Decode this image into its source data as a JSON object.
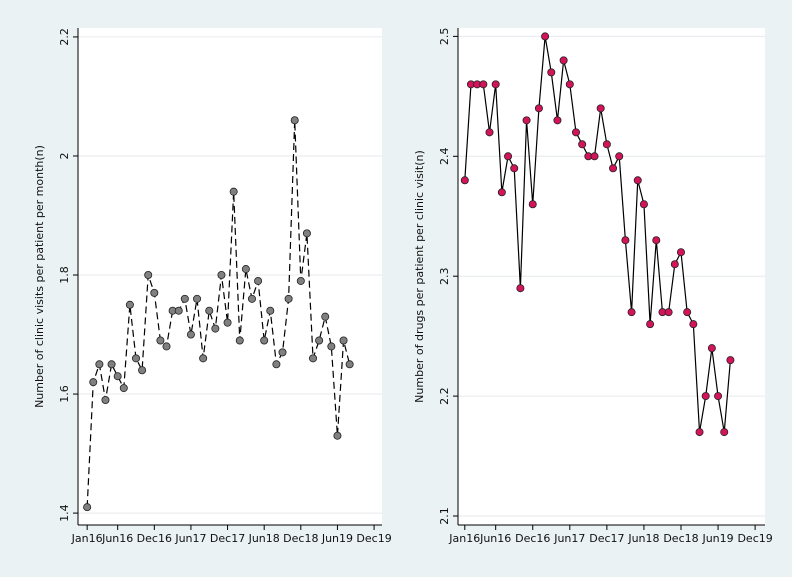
{
  "chart_data": [
    {
      "type": "line",
      "ylabel": "Number of clinic visits per patient per month(n)",
      "x": [
        0,
        1,
        2,
        3,
        4,
        5,
        6,
        7,
        8,
        9,
        10,
        11,
        12,
        13,
        14,
        15,
        16,
        17,
        18,
        19,
        20,
        21,
        22,
        23,
        24,
        25,
        26,
        27,
        28,
        29,
        30,
        31,
        32,
        33,
        34,
        35,
        36,
        37,
        38,
        39,
        40,
        41,
        42,
        43
      ],
      "values": [
        1.41,
        1.62,
        1.65,
        1.59,
        1.65,
        1.63,
        1.61,
        1.75,
        1.66,
        1.64,
        1.8,
        1.77,
        1.69,
        1.68,
        1.74,
        1.74,
        1.76,
        1.7,
        1.76,
        1.66,
        1.74,
        1.71,
        1.8,
        1.72,
        1.94,
        1.69,
        1.81,
        1.76,
        1.79,
        1.69,
        1.74,
        1.65,
        1.67,
        1.76,
        2.06,
        1.79,
        1.87,
        1.66,
        1.69,
        1.73,
        1.68,
        1.53,
        1.69,
        1.65
      ],
      "line_color": "#000000",
      "line_style": "dashed",
      "marker_color": "#808080",
      "xlim": [
        -1.5,
        48.3
      ],
      "ylim": [
        1.38,
        2.215
      ],
      "xticks": [
        {
          "value": 0,
          "label": "Jan16"
        },
        {
          "value": 5,
          "label": "Jun16"
        },
        {
          "value": 11,
          "label": "Dec16"
        },
        {
          "value": 17,
          "label": "Jun17"
        },
        {
          "value": 23,
          "label": "Dec17"
        },
        {
          "value": 29,
          "label": "Jun18"
        },
        {
          "value": 35,
          "label": "Dec18"
        },
        {
          "value": 41,
          "label": "Jun19"
        },
        {
          "value": 47,
          "label": "Dec19"
        }
      ],
      "yticks": [
        1.4,
        1.6,
        1.8,
        2,
        2.2
      ],
      "grid": true
    },
    {
      "type": "line",
      "ylabel": "Number of drugs per patient per clinic visit(n)",
      "x": [
        0,
        1,
        2,
        3,
        4,
        5,
        6,
        7,
        8,
        9,
        10,
        11,
        12,
        13,
        14,
        15,
        16,
        17,
        18,
        19,
        20,
        21,
        22,
        23,
        24,
        25,
        26,
        27,
        28,
        29,
        30,
        31,
        32,
        33,
        34,
        35,
        36,
        37,
        38,
        39,
        40,
        41,
        42,
        43
      ],
      "values": [
        2.38,
        2.46,
        2.46,
        2.46,
        2.42,
        2.46,
        2.37,
        2.4,
        2.39,
        2.29,
        2.43,
        2.36,
        2.44,
        2.5,
        2.47,
        2.43,
        2.48,
        2.46,
        2.42,
        2.41,
        2.4,
        2.4,
        2.44,
        2.41,
        2.39,
        2.4,
        2.33,
        2.27,
        2.38,
        2.36,
        2.26,
        2.33,
        2.27,
        2.27,
        2.31,
        2.32,
        2.27,
        2.26,
        2.17,
        2.2,
        2.24,
        2.2,
        2.17,
        2.23
      ],
      "line_color": "#000000",
      "line_style": "solid",
      "marker_color": "#d4145a",
      "xlim": [
        -1.1,
        48.6
      ],
      "ylim": [
        2.0925,
        2.507
      ],
      "xticks": [
        {
          "value": 0,
          "label": "Jan16"
        },
        {
          "value": 5,
          "label": "Jun16"
        },
        {
          "value": 11,
          "label": "Dec16"
        },
        {
          "value": 17,
          "label": "Jun17"
        },
        {
          "value": 23,
          "label": "Dec17"
        },
        {
          "value": 29,
          "label": "Jun18"
        },
        {
          "value": 35,
          "label": "Dec18"
        },
        {
          "value": 41,
          "label": "Jun19"
        },
        {
          "value": 47,
          "label": "Dec19"
        }
      ],
      "yticks": [
        2.1,
        2.2,
        2.3,
        2.4,
        2.5
      ],
      "grid": true
    }
  ]
}
